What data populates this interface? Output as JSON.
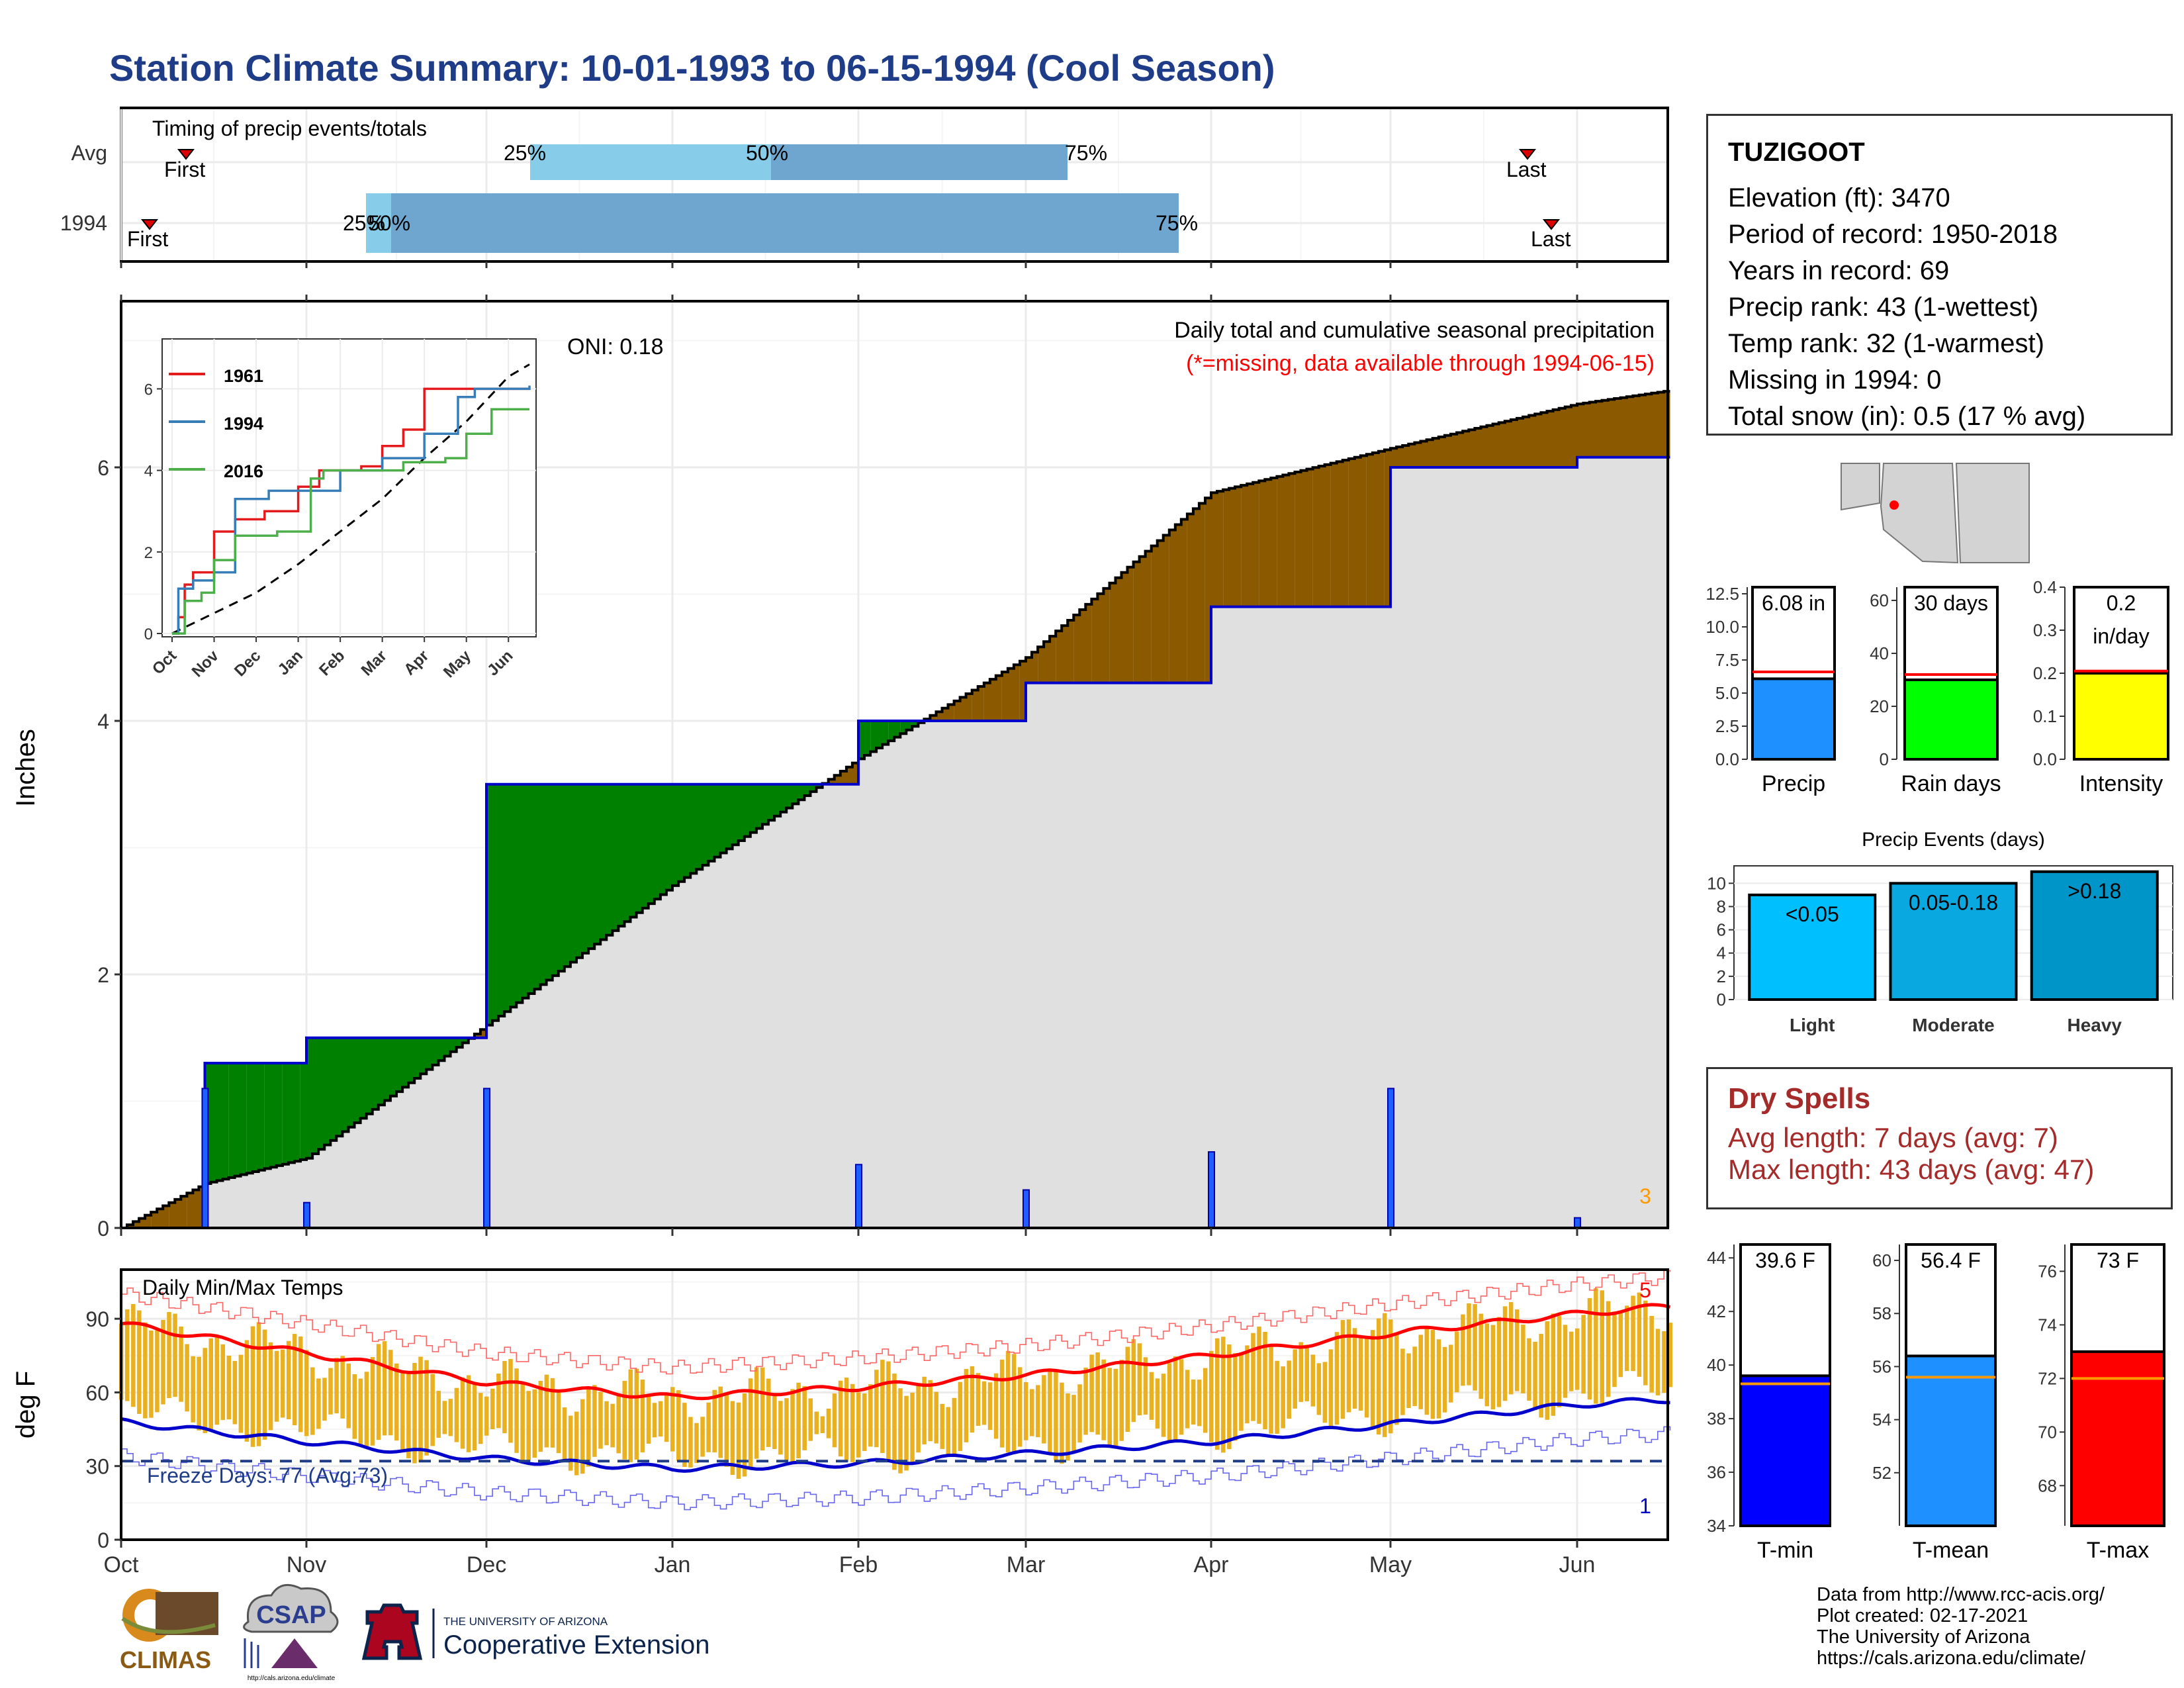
{
  "title": "Station Climate Summary: 10-01-1993 to 06-15-1994 (Cool Season)",
  "colors": {
    "title": "#1f3c88",
    "q25_bar": "#87cdea",
    "q50_bar": "#6ea6cf",
    "above_avg_fill": "#008000",
    "below_avg_fill": "#8b5a00",
    "avg_fill": "#e0e0e0",
    "current_line": "#0000cc",
    "temp_bar": "#e9b01f",
    "tmax_line": "#ff0000",
    "tmin_line": "#0000cc"
  },
  "timing_panel": {
    "title": "Timing of precip events/totals",
    "rows": [
      "Avg",
      "1994"
    ],
    "labels": {
      "first": "First",
      "last": "Last",
      "p25": "25%",
      "p50": "50%",
      "p75": "75%"
    }
  },
  "precip_panel": {
    "ylabel": "Inches",
    "title": "Daily total and cumulative seasonal precipitation",
    "subtitle": "(*=missing, data available through 1994-06-15)",
    "oni": "ONI: 0.18",
    "corner_count": "3",
    "y_ticks": [
      "0",
      "2",
      "4",
      "6"
    ]
  },
  "inset": {
    "legend": [
      "1961",
      "1994",
      "2016"
    ],
    "x_ticks": [
      "Oct",
      "Nov",
      "Dec",
      "Jan",
      "Feb",
      "Mar",
      "Apr",
      "May",
      "Jun"
    ],
    "y_ticks": [
      "0",
      "2",
      "4",
      "6"
    ]
  },
  "temp_panel": {
    "ylabel": "deg F",
    "title": "Daily Min/Max Temps",
    "freeze_text": "Freeze Days: 77 (Avg:73)",
    "count_high": "5",
    "count_low": "1",
    "y_ticks": [
      "0",
      "30",
      "60",
      "90"
    ]
  },
  "x_months": [
    "Oct",
    "Nov",
    "Dec",
    "Jan",
    "Feb",
    "Mar",
    "Apr",
    "May",
    "Jun"
  ],
  "station": {
    "name": "TUZIGOOT",
    "lines": [
      "Elevation (ft): 3470",
      "Period of record: 1950-2018",
      "Years in record: 69",
      "Precip rank: 43 (1-wettest)",
      "Temp rank: 32 (1-warmest)",
      "Missing in 1994: 0",
      "Total snow (in): 0.5 (17 % avg)"
    ]
  },
  "mini_bars": {
    "precip": {
      "label": "Precip",
      "value_text": "6.08 in",
      "value": 6.08,
      "avg": 6.6,
      "ylim": [
        0,
        13
      ],
      "ticks": [
        "0.0",
        "2.5",
        "5.0",
        "7.5",
        "10.0",
        "12.5"
      ],
      "color": "#1e90ff"
    },
    "rain_days": {
      "label": "Rain days",
      "value_text": "30 days",
      "value": 30,
      "avg": 32,
      "ylim": [
        0,
        65
      ],
      "ticks": [
        "0",
        "20",
        "40",
        "60"
      ],
      "color": "#00ff00"
    },
    "intensity": {
      "label": "Intensity",
      "value_text": "0.2",
      "value_text2": "in/day",
      "value": 0.2,
      "avg": 0.205,
      "ylim": [
        0,
        0.4
      ],
      "ticks": [
        "0.0",
        "0.1",
        "0.2",
        "0.3",
        "0.4"
      ],
      "color": "#ffff00"
    }
  },
  "precip_events": {
    "title": "Precip Events (days)",
    "categories": [
      "Light",
      "Moderate",
      "Heavy"
    ],
    "labels": [
      "<0.05",
      "0.05-0.18",
      ">0.18"
    ],
    "values": [
      9,
      10,
      11
    ],
    "ylim": [
      0,
      11.5
    ],
    "ticks": [
      "0",
      "2",
      "4",
      "6",
      "8",
      "10"
    ],
    "colors": [
      "#00bfff",
      "#0aa8e0",
      "#0095c8"
    ]
  },
  "dry_spells": {
    "title": "Dry Spells",
    "avg_line": "Avg length: 7 days (avg: 7)",
    "max_line": "Max length: 43 days (avg: 47)"
  },
  "temp_bars": {
    "tmin": {
      "label": "T-min",
      "value_text": "39.6 F",
      "value": 39.6,
      "avg": 39.3,
      "ylim": [
        34,
        44.5
      ],
      "ticks": [
        "34",
        "36",
        "38",
        "40",
        "42",
        "44"
      ],
      "color": "#0000ff"
    },
    "tmean": {
      "label": "T-mean",
      "value_text": "56.4 F",
      "value": 56.4,
      "avg": 55.6,
      "ylim": [
        50,
        60.6
      ],
      "ticks": [
        "52",
        "54",
        "56",
        "58",
        "60"
      ],
      "color": "#1e90ff"
    },
    "tmax": {
      "label": "T-max",
      "value_text": "73 F",
      "value": 73,
      "avg": 72,
      "ylim": [
        66.5,
        77
      ],
      "ticks": [
        "68",
        "70",
        "72",
        "74",
        "76"
      ],
      "color": "#ff0000"
    }
  },
  "credits": [
    "Data from http://www.rcc-acis.org/",
    "Plot created: 02-17-2021",
    "The University of Arizona",
    "https://cals.arizona.edu/climate/"
  ],
  "logos": {
    "climas": "CLIMAS",
    "csap": "CSAP",
    "csap_url": "http://cals.arizona.edu/climate",
    "ua_line1": "THE UNIVERSITY OF ARIZONA",
    "ua_line2": "Cooperative Extension"
  },
  "chart_data": [
    {
      "type": "area",
      "title": "Daily total and cumulative seasonal precipitation",
      "ylabel": "Inches",
      "ylim": [
        0,
        7.2
      ],
      "x": [
        "1993-10-01",
        "1993-10-15",
        "1993-11-01",
        "1993-12-01",
        "1994-01-01",
        "1994-02-01",
        "1994-03-01",
        "1994-04-01",
        "1994-05-01",
        "1994-06-01",
        "1994-06-15"
      ],
      "series": [
        {
          "name": "1994",
          "values": [
            0.0,
            1.3,
            1.5,
            3.5,
            3.5,
            4.0,
            4.3,
            4.9,
            6.0,
            6.08,
            6.08
          ]
        },
        {
          "name": "Avg",
          "values": [
            0.0,
            0.35,
            0.55,
            1.6,
            2.7,
            3.7,
            4.5,
            5.8,
            6.15,
            6.5,
            6.6
          ]
        }
      ]
    },
    {
      "type": "line",
      "title": "Daily Min/Max Temps",
      "ylabel": "deg F",
      "ylim": [
        0,
        110
      ],
      "x": [
        "1993-10-01",
        "1993-11-01",
        "1993-12-01",
        "1994-01-01",
        "1994-02-01",
        "1994-03-01",
        "1994-04-01",
        "1994-05-01",
        "1994-06-01",
        "1994-06-15"
      ],
      "series": [
        {
          "name": "avg tmax",
          "values": [
            88,
            76,
            64,
            58,
            62,
            67,
            75,
            84,
            92,
            95
          ]
        },
        {
          "name": "avg tmin",
          "values": [
            48,
            40,
            33,
            29,
            31,
            35,
            40,
            47,
            55,
            57
          ]
        }
      ]
    }
  ]
}
